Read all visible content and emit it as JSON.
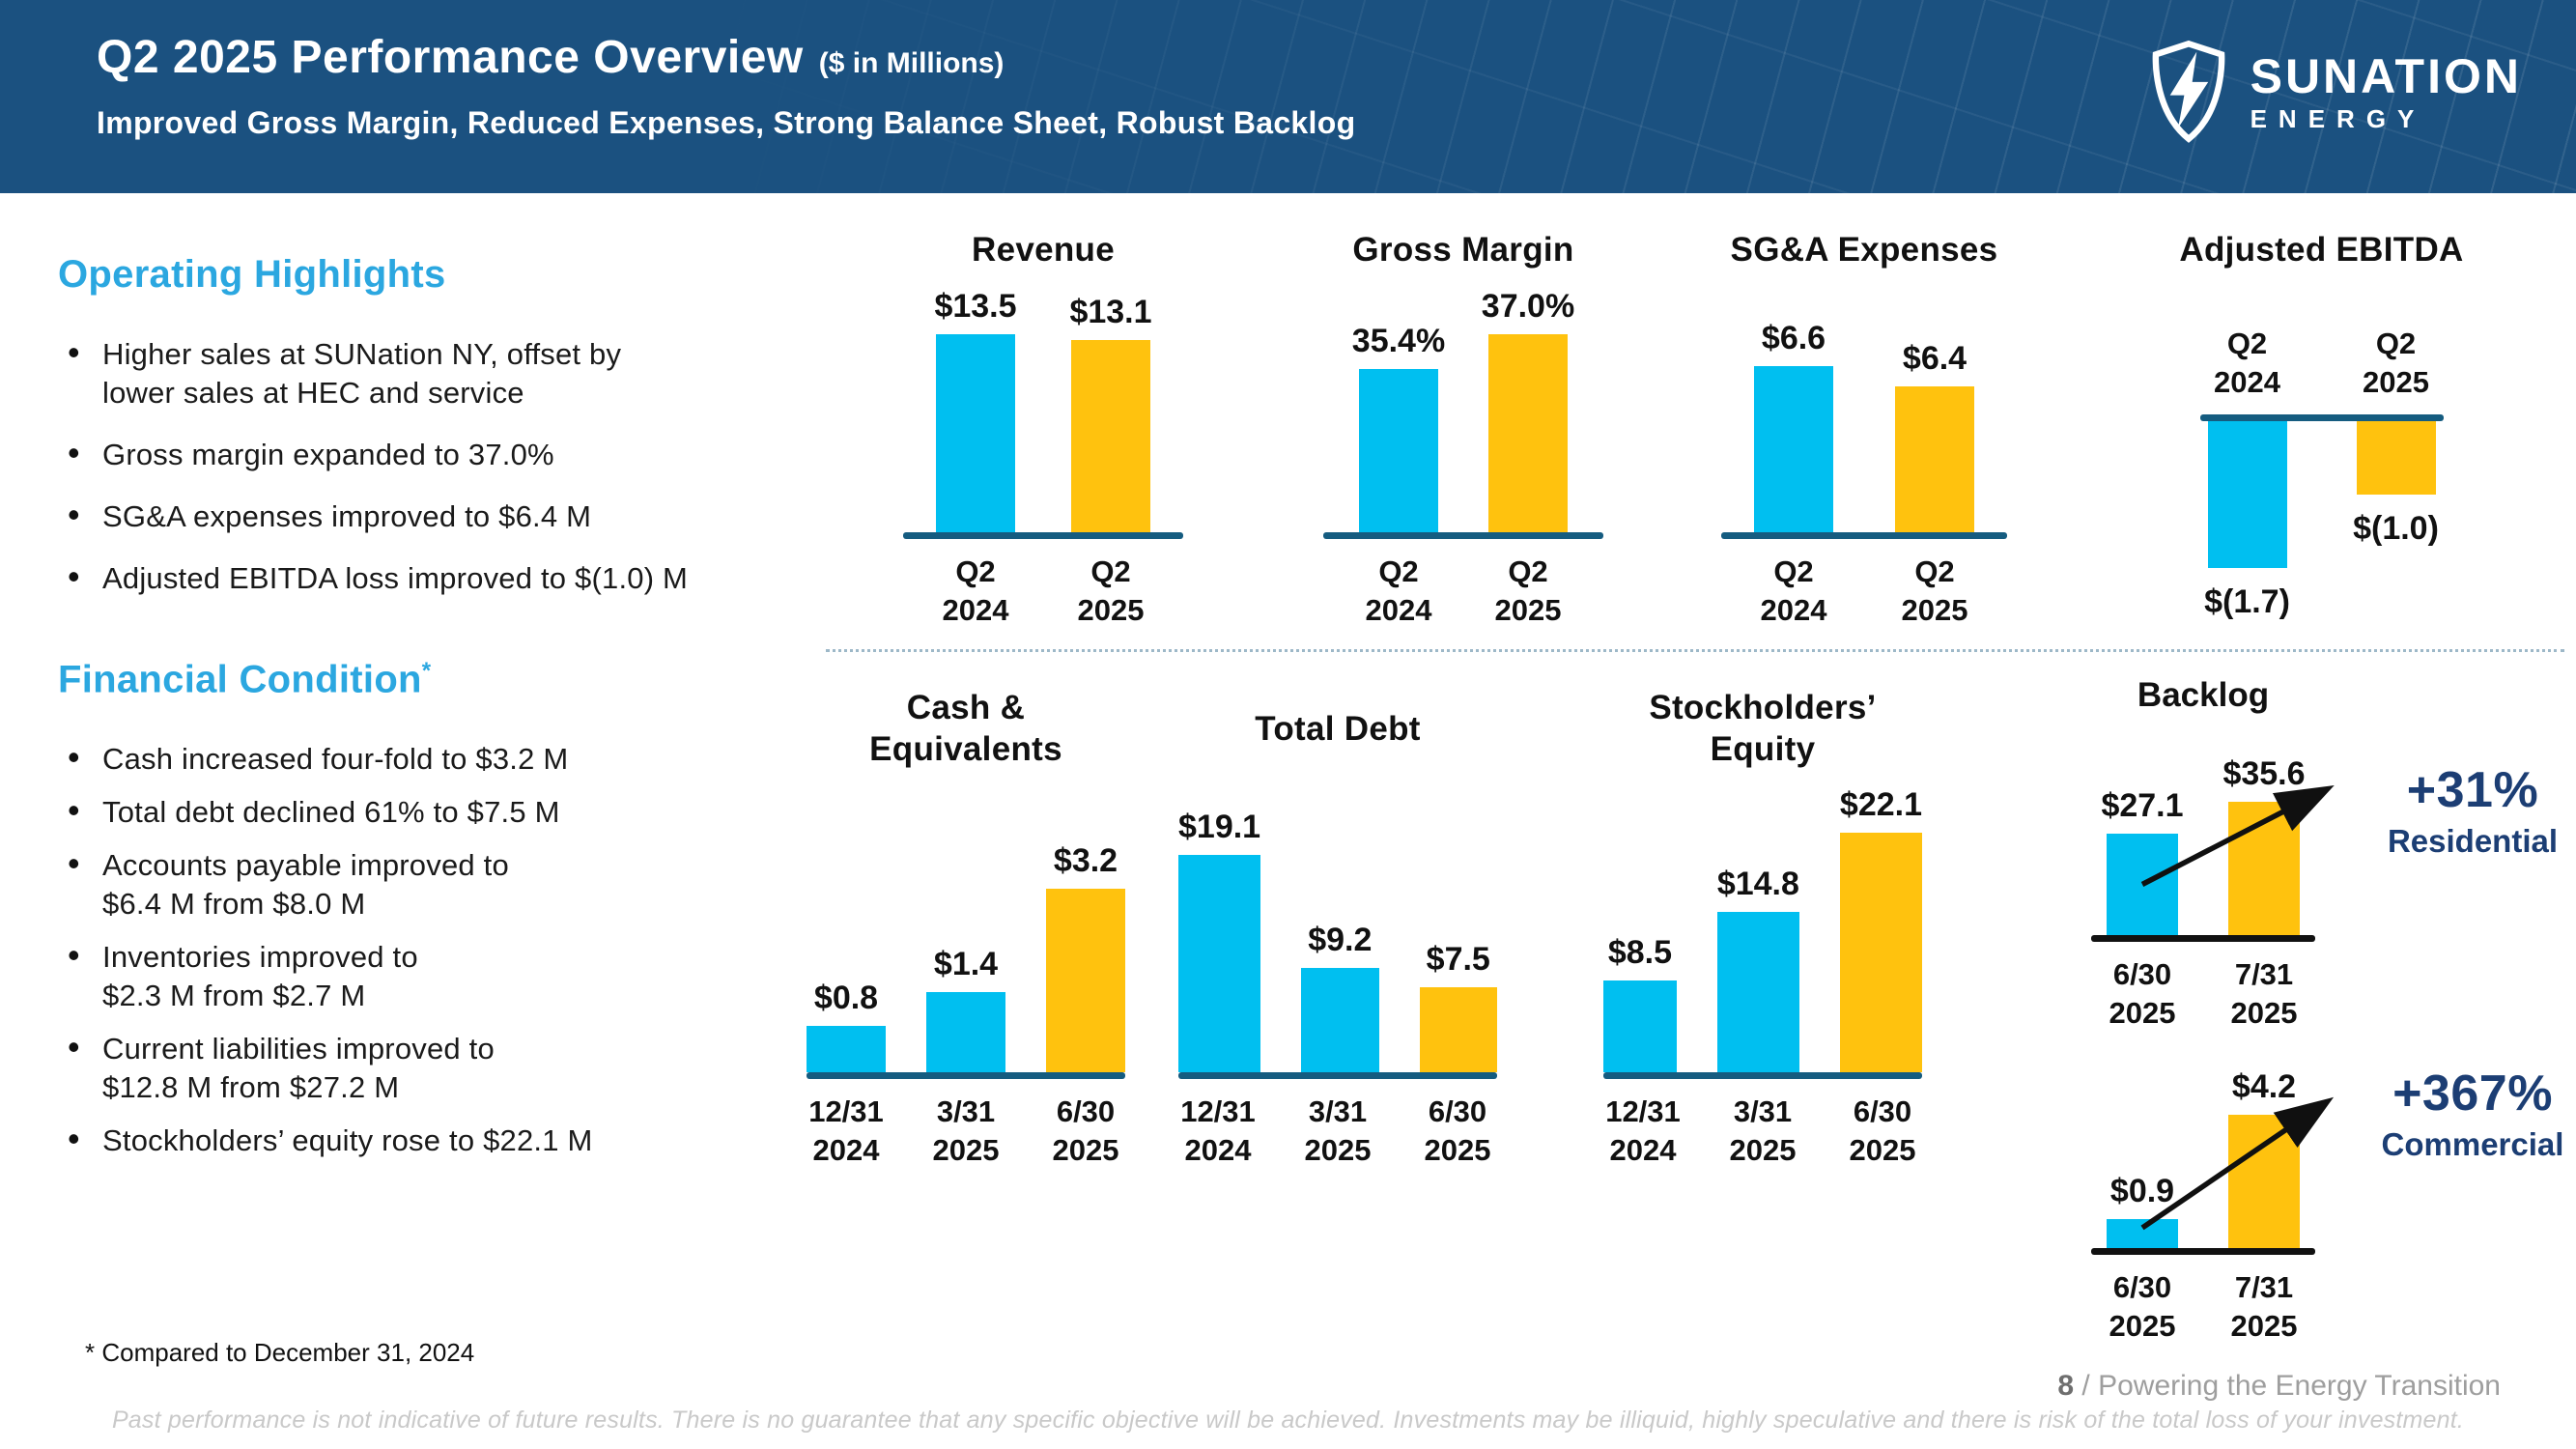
{
  "header": {
    "title": "Q2 2025 Performance Overview",
    "title_suffix": "($ in Millions)",
    "subtitle": "Improved Gross Margin, Reduced Expenses, Strong Balance Sheet, Robust Backlog",
    "logo": {
      "name": "SUNATION",
      "sub": "ENERGY"
    }
  },
  "colors": {
    "cyan": "#00BFF0",
    "gold": "#FFC20E",
    "heading_cyan": "#2BA7E0",
    "navy": "#1C3E74",
    "axis_blue": "#155C80",
    "black": "#111111",
    "header_blue": "#1B5180"
  },
  "operating": {
    "heading": "Operating Highlights",
    "bullets": [
      "Higher sales at SUNation NY, offset by\nlower sales at HEC and service",
      "Gross margin expanded to 37.0%",
      "SG&A expenses improved to $6.4 M",
      "Adjusted EBITDA loss improved to $(1.0) M"
    ]
  },
  "financial": {
    "heading": "Financial Condition",
    "heading_sup": "*",
    "bullets": [
      "Cash increased four-fold to $3.2 M",
      "Total debt declined 61% to $7.5 M",
      "Accounts payable improved to\n$6.4 M from $8.0 M",
      "Inventories improved to\n$2.3 M from $2.7 M",
      "Current liabilities improved to\n$12.8 M from $27.2 M",
      "Stockholders’ equity rose to $22.1 M"
    ]
  },
  "footnote": "* Compared to December 31, 2024",
  "footer": {
    "page_number": "8",
    "tagline": " / Powering the Energy Transition",
    "disclaimer": "Past performance is not indicative of future results. There is no guarantee that any specific objective will be achieved. Investments may be illiquid, highly speculative and there is risk of the total loss of your investment."
  },
  "chart_data": [
    {
      "id": "revenue",
      "type": "bar",
      "title": [
        "Revenue"
      ],
      "categories": [
        [
          "Q2",
          "2024"
        ],
        [
          "Q2",
          "2025"
        ]
      ],
      "values": [
        13.5,
        13.1
      ],
      "value_labels": [
        "$13.5",
        "$13.1"
      ],
      "bar_colors": [
        "cyan",
        "gold"
      ],
      "ylim": [
        0,
        13.5
      ],
      "unit": "$ millions"
    },
    {
      "id": "gross-margin",
      "type": "bar",
      "title": [
        "Gross Margin"
      ],
      "categories": [
        [
          "Q2",
          "2024"
        ],
        [
          "Q2",
          "2025"
        ]
      ],
      "values": [
        35.4,
        37.0
      ],
      "value_labels": [
        "35.4%",
        "37.0%"
      ],
      "bar_colors": [
        "cyan",
        "gold"
      ],
      "ylim": [
        28,
        37
      ],
      "unit": "%"
    },
    {
      "id": "sga",
      "type": "bar",
      "title": [
        "SG&A Expenses"
      ],
      "categories": [
        [
          "Q2",
          "2024"
        ],
        [
          "Q2",
          "2025"
        ]
      ],
      "values": [
        6.6,
        6.4
      ],
      "value_labels": [
        "$6.6",
        "$6.4"
      ],
      "bar_colors": [
        "cyan",
        "gold"
      ],
      "ylim": [
        5,
        6.6
      ],
      "unit": "$ millions"
    },
    {
      "id": "ebitda",
      "type": "bar",
      "direction": "down",
      "title": [
        "Adjusted EBITDA"
      ],
      "categories": [
        [
          "Q2",
          "2024"
        ],
        [
          "Q2",
          "2025"
        ]
      ],
      "values": [
        -1.7,
        -1.0
      ],
      "value_labels": [
        "$(1.7)",
        "$(1.0)"
      ],
      "bar_colors": [
        "cyan",
        "gold"
      ],
      "ylim": [
        -1.7,
        -0.3
      ],
      "unit": "$ millions"
    },
    {
      "id": "cash",
      "type": "bar",
      "title": [
        "Cash &",
        "Equivalents"
      ],
      "categories": [
        [
          "12/31",
          "2024"
        ],
        [
          "3/31",
          "2025"
        ],
        [
          "6/30",
          "2025"
        ]
      ],
      "values": [
        0.8,
        1.4,
        3.2
      ],
      "value_labels": [
        "$0.8",
        "$1.4",
        "$3.2"
      ],
      "bar_colors": [
        "cyan",
        "cyan",
        "gold"
      ],
      "ylim": [
        0,
        3.2
      ],
      "unit": "$ millions"
    },
    {
      "id": "debt",
      "type": "bar",
      "title": [
        "Total Debt"
      ],
      "categories": [
        [
          "12/31",
          "2024"
        ],
        [
          "3/31",
          "2025"
        ],
        [
          "6/30",
          "2025"
        ]
      ],
      "values": [
        19.1,
        9.2,
        7.5
      ],
      "value_labels": [
        "$19.1",
        "$9.2",
        "$7.5"
      ],
      "bar_colors": [
        "cyan",
        "cyan",
        "gold"
      ],
      "ylim": [
        0,
        19.1
      ],
      "unit": "$ millions"
    },
    {
      "id": "equity",
      "type": "bar",
      "title": [
        "Stockholders’",
        "Equity"
      ],
      "categories": [
        [
          "12/31",
          "2024"
        ],
        [
          "3/31",
          "2025"
        ],
        [
          "6/30",
          "2025"
        ]
      ],
      "values": [
        8.5,
        14.8,
        22.1
      ],
      "value_labels": [
        "$8.5",
        "$14.8",
        "$22.1"
      ],
      "bar_colors": [
        "cyan",
        "cyan",
        "gold"
      ],
      "ylim": [
        0,
        22.1
      ],
      "unit": "$ millions"
    },
    {
      "id": "backlog-residential",
      "type": "bar",
      "group_title": "Backlog",
      "categories": [
        [
          "6/30",
          "2025"
        ],
        [
          "7/31",
          "2025"
        ]
      ],
      "values": [
        27.1,
        35.6
      ],
      "value_labels": [
        "$27.1",
        "$35.6"
      ],
      "bar_colors": [
        "cyan",
        "gold"
      ],
      "ylim": [
        0,
        35.6
      ],
      "unit": "$ millions",
      "annotation": {
        "pct": "+31%",
        "label": "Residential"
      }
    },
    {
      "id": "backlog-commercial",
      "type": "bar",
      "categories": [
        [
          "6/30",
          "2025"
        ],
        [
          "7/31",
          "2025"
        ]
      ],
      "values": [
        0.9,
        4.2
      ],
      "value_labels": [
        "$0.9",
        "$4.2"
      ],
      "bar_colors": [
        "cyan",
        "gold"
      ],
      "ylim": [
        0,
        4.2
      ],
      "unit": "$ millions",
      "annotation": {
        "pct": "+367%",
        "label": "Commercial"
      }
    }
  ]
}
